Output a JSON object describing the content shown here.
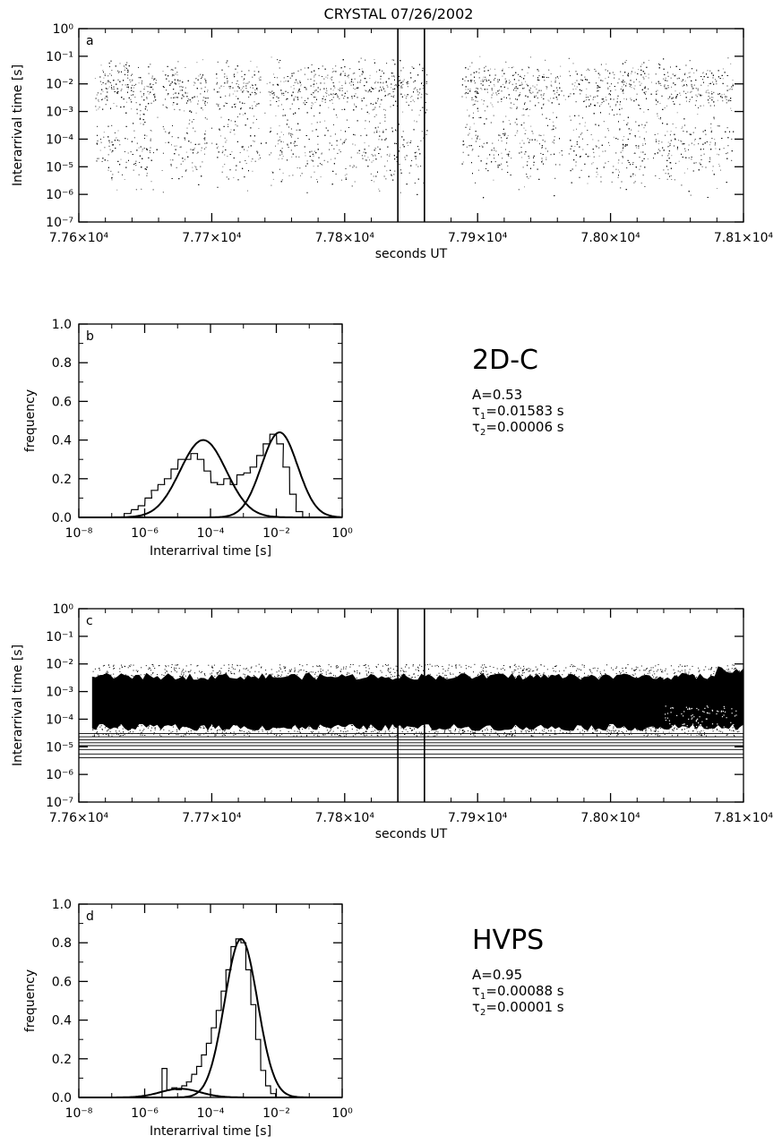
{
  "title": "CRYSTAL 07/26/2002",
  "chart_data": [
    {
      "panel": "a",
      "type": "scatter",
      "ylabel": "Interarrival time [s]",
      "xlabel": "seconds UT",
      "xlim": [
        77600,
        78100
      ],
      "ylim": [
        1e-07,
        1
      ],
      "yscale": "log",
      "x_ticks": [
        {
          "value": 77600,
          "label": "7.76×10⁴"
        },
        {
          "value": 77700,
          "label": "7.77×10⁴"
        },
        {
          "value": 77800,
          "label": "7.78×10⁴"
        },
        {
          "value": 77900,
          "label": "7.79×10⁴"
        },
        {
          "value": 78000,
          "label": "7.80×10⁴"
        },
        {
          "value": 78100,
          "label": "7.81×10⁴"
        }
      ],
      "y_ticks": [
        {
          "value": 1,
          "label": "10⁰"
        },
        {
          "value": 0.1,
          "label": "10⁻¹"
        },
        {
          "value": 0.01,
          "label": "10⁻²"
        },
        {
          "value": 0.001,
          "label": "10⁻³"
        },
        {
          "value": 0.0001,
          "label": "10⁻⁴"
        },
        {
          "value": 1e-05,
          "label": "10⁻⁵"
        },
        {
          "value": 1e-06,
          "label": "10⁻⁶"
        },
        {
          "value": 1e-07,
          "label": "10⁻⁷"
        }
      ],
      "selection_lines_x": [
        77840,
        77860
      ],
      "dense_band_y": [
        8e-07,
        0.1
      ],
      "sparse_gaps_x": [
        77660,
        77700,
        77740,
        77865,
        77880,
        77965,
        78030
      ]
    },
    {
      "panel": "b",
      "type": "histogram",
      "ylabel": "frequency",
      "xlabel": "Interarrival time [s]",
      "xlim": [
        1e-08,
        1
      ],
      "xscale": "log",
      "ylim": [
        0,
        1
      ],
      "x_ticks": [
        {
          "value": 1e-08,
          "label": "10⁻⁸"
        },
        {
          "value": 1e-06,
          "label": "10⁻⁶"
        },
        {
          "value": 0.0001,
          "label": "10⁻⁴"
        },
        {
          "value": 0.01,
          "label": "10⁻²"
        },
        {
          "value": 1,
          "label": "10⁰"
        }
      ],
      "y_ticks": [
        {
          "value": 0.0,
          "label": "0.0"
        },
        {
          "value": 0.2,
          "label": "0.2"
        },
        {
          "value": 0.4,
          "label": "0.4"
        },
        {
          "value": 0.6,
          "label": "0.6"
        },
        {
          "value": 0.8,
          "label": "0.8"
        },
        {
          "value": 1.0,
          "label": "1.0"
        }
      ],
      "bin_width_log10": 0.2,
      "bins": [
        {
          "x": 3e-07,
          "freq": 0.02
        },
        {
          "x": 5e-07,
          "freq": 0.04
        },
        {
          "x": 8e-07,
          "freq": 0.06
        },
        {
          "x": 1.3e-06,
          "freq": 0.1
        },
        {
          "x": 2e-06,
          "freq": 0.14
        },
        {
          "x": 3.2e-06,
          "freq": 0.17
        },
        {
          "x": 5e-06,
          "freq": 0.2
        },
        {
          "x": 8e-06,
          "freq": 0.25
        },
        {
          "x": 1.3e-05,
          "freq": 0.3
        },
        {
          "x": 2e-05,
          "freq": 0.3
        },
        {
          "x": 3.2e-05,
          "freq": 0.33
        },
        {
          "x": 5e-05,
          "freq": 0.3
        },
        {
          "x": 8e-05,
          "freq": 0.24
        },
        {
          "x": 0.00013,
          "freq": 0.18
        },
        {
          "x": 0.0002,
          "freq": 0.17
        },
        {
          "x": 0.00032,
          "freq": 0.2
        },
        {
          "x": 0.0005,
          "freq": 0.17
        },
        {
          "x": 0.0008,
          "freq": 0.22
        },
        {
          "x": 0.0013,
          "freq": 0.23
        },
        {
          "x": 0.002,
          "freq": 0.26
        },
        {
          "x": 0.0032,
          "freq": 0.32
        },
        {
          "x": 0.005,
          "freq": 0.38
        },
        {
          "x": 0.008,
          "freq": 0.43
        },
        {
          "x": 0.013,
          "freq": 0.38
        },
        {
          "x": 0.02,
          "freq": 0.26
        },
        {
          "x": 0.032,
          "freq": 0.12
        },
        {
          "x": 0.05,
          "freq": 0.03
        }
      ],
      "fit_curves": [
        {
          "center": 6e-05,
          "peak": 0.4,
          "sigma_log10": 0.7
        },
        {
          "center": 0.0125,
          "peak": 0.44,
          "sigma_log10": 0.55
        }
      ],
      "instrument": "2D-C",
      "A": "A=0.53",
      "tau1": "=0.01583 s",
      "tau2": "=0.00006 s"
    },
    {
      "panel": "c",
      "type": "scatter",
      "ylabel": "Interarrival time [s]",
      "xlabel": "seconds UT",
      "xlim": [
        77600,
        78100
      ],
      "ylim": [
        1e-07,
        1
      ],
      "yscale": "log",
      "x_ticks": [
        {
          "value": 77600,
          "label": "7.76×10⁴"
        },
        {
          "value": 77700,
          "label": "7.77×10⁴"
        },
        {
          "value": 77800,
          "label": "7.78×10⁴"
        },
        {
          "value": 77900,
          "label": "7.79×10⁴"
        },
        {
          "value": 78000,
          "label": "7.80×10⁴"
        },
        {
          "value": 78100,
          "label": "7.81×10⁴"
        }
      ],
      "y_ticks": [
        {
          "value": 1,
          "label": "10⁰"
        },
        {
          "value": 0.1,
          "label": "10⁻¹"
        },
        {
          "value": 0.01,
          "label": "10⁻²"
        },
        {
          "value": 0.001,
          "label": "10⁻³"
        },
        {
          "value": 0.0001,
          "label": "10⁻⁴"
        },
        {
          "value": 1e-05,
          "label": "10⁻⁵"
        },
        {
          "value": 1e-06,
          "label": "10⁻⁶"
        },
        {
          "value": 1e-07,
          "label": "10⁻⁷"
        }
      ],
      "selection_lines_x": [
        77840,
        77860
      ],
      "dense_band_y": [
        5e-05,
        0.005
      ],
      "horizontal_lines_y": [
        4e-06,
        5.5e-06,
        8e-06,
        1.1e-05,
        1.4e-05,
        1.8e-05,
        2.3e-05,
        3e-05
      ]
    },
    {
      "panel": "d",
      "type": "histogram",
      "ylabel": "frequency",
      "xlabel": "Interarrival time [s]",
      "xlim": [
        1e-08,
        1
      ],
      "xscale": "log",
      "ylim": [
        0,
        1
      ],
      "x_ticks": [
        {
          "value": 1e-08,
          "label": "10⁻⁸"
        },
        {
          "value": 1e-06,
          "label": "10⁻⁶"
        },
        {
          "value": 0.0001,
          "label": "10⁻⁴"
        },
        {
          "value": 0.01,
          "label": "10⁻²"
        },
        {
          "value": 1,
          "label": "10⁰"
        }
      ],
      "y_ticks": [
        {
          "value": 0.0,
          "label": "0.0"
        },
        {
          "value": 0.2,
          "label": "0.2"
        },
        {
          "value": 0.4,
          "label": "0.4"
        },
        {
          "value": 0.6,
          "label": "0.6"
        },
        {
          "value": 0.8,
          "label": "0.8"
        },
        {
          "value": 1.0,
          "label": "1.0"
        }
      ],
      "bin_width_log10": 0.15,
      "bins": [
        {
          "x": 4e-06,
          "freq": 0.15
        },
        {
          "x": 5.6e-06,
          "freq": 0.04
        },
        {
          "x": 8e-06,
          "freq": 0.05
        },
        {
          "x": 1.1e-05,
          "freq": 0.04
        },
        {
          "x": 1.6e-05,
          "freq": 0.06
        },
        {
          "x": 2.2e-05,
          "freq": 0.08
        },
        {
          "x": 3.2e-05,
          "freq": 0.12
        },
        {
          "x": 4.5e-05,
          "freq": 0.16
        },
        {
          "x": 6.3e-05,
          "freq": 0.22
        },
        {
          "x": 8.9e-05,
          "freq": 0.28
        },
        {
          "x": 0.000126,
          "freq": 0.36
        },
        {
          "x": 0.000178,
          "freq": 0.45
        },
        {
          "x": 0.00025,
          "freq": 0.55
        },
        {
          "x": 0.00035,
          "freq": 0.66
        },
        {
          "x": 0.0005,
          "freq": 0.78
        },
        {
          "x": 0.0007,
          "freq": 0.82
        },
        {
          "x": 0.001,
          "freq": 0.8
        },
        {
          "x": 0.0014,
          "freq": 0.66
        },
        {
          "x": 0.002,
          "freq": 0.48
        },
        {
          "x": 0.0028,
          "freq": 0.3
        },
        {
          "x": 0.004,
          "freq": 0.14
        },
        {
          "x": 0.0056,
          "freq": 0.06
        },
        {
          "x": 0.008,
          "freq": 0.02
        }
      ],
      "fit_curves": [
        {
          "center": 0.00085,
          "peak": 0.82,
          "sigma_log10": 0.5
        },
        {
          "center": 1.2e-05,
          "peak": 0.045,
          "sigma_log10": 0.6
        }
      ],
      "instrument": "HVPS",
      "A": "A=0.95",
      "tau1": "=0.00088 s",
      "tau2": "=0.00001 s"
    }
  ]
}
